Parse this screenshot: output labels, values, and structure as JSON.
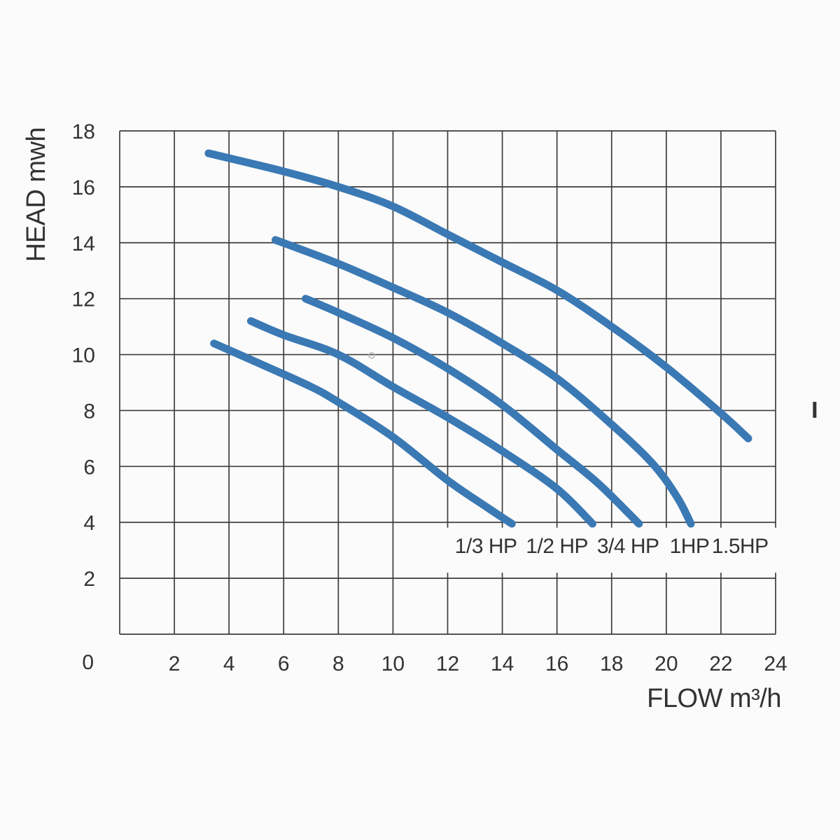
{
  "chart_data": {
    "type": "line",
    "title": "",
    "xlabel": "FLOW  m³/h",
    "ylabel": "HEAD mwh",
    "origin_label": "0",
    "xlim": [
      0,
      24
    ],
    "ylim": [
      0,
      18
    ],
    "grid": "on",
    "grid_step": 2,
    "x_ticks": [
      2,
      4,
      6,
      8,
      10,
      12,
      14,
      16,
      18,
      20,
      22,
      24
    ],
    "y_ticks": [
      2,
      4,
      6,
      8,
      10,
      12,
      14,
      16,
      18
    ],
    "legend_position": "inline-labels-below-curves",
    "series": [
      {
        "label": "1/3 HP",
        "label_x": 13.4,
        "points": [
          [
            3.45,
            10.4
          ],
          [
            5.3,
            9.6
          ],
          [
            7.0,
            8.85
          ],
          [
            8.0,
            8.3
          ],
          [
            10.0,
            7.05
          ],
          [
            12.0,
            5.5
          ],
          [
            13.5,
            4.5
          ],
          [
            14.35,
            3.95
          ]
        ]
      },
      {
        "label": "1/2 HP",
        "label_x": 16.0,
        "points": [
          [
            4.8,
            11.2
          ],
          [
            6.0,
            10.7
          ],
          [
            8.0,
            10.0
          ],
          [
            10.0,
            8.85
          ],
          [
            12.0,
            7.75
          ],
          [
            14.0,
            6.55
          ],
          [
            16.0,
            5.2
          ],
          [
            17.3,
            3.95
          ]
        ]
      },
      {
        "label": "3/4 HP",
        "label_x": 18.6,
        "points": [
          [
            6.8,
            12.0
          ],
          [
            8.0,
            11.5
          ],
          [
            10.0,
            10.6
          ],
          [
            12.0,
            9.5
          ],
          [
            14.0,
            8.2
          ],
          [
            16.0,
            6.6
          ],
          [
            17.5,
            5.4
          ],
          [
            19.0,
            3.95
          ]
        ]
      },
      {
        "label": "1HP",
        "label_x": 20.85,
        "points": [
          [
            5.7,
            14.1
          ],
          [
            8.0,
            13.25
          ],
          [
            10.0,
            12.4
          ],
          [
            12.0,
            11.5
          ],
          [
            14.0,
            10.4
          ],
          [
            16.0,
            9.15
          ],
          [
            18.0,
            7.5
          ],
          [
            19.5,
            6.1
          ],
          [
            20.4,
            4.9
          ],
          [
            20.9,
            3.95
          ]
        ]
      },
      {
        "label": "1.5HP",
        "label_x": 22.7,
        "points": [
          [
            3.25,
            17.2
          ],
          [
            6.0,
            16.55
          ],
          [
            8.0,
            16.0
          ],
          [
            10.0,
            15.3
          ],
          [
            12.0,
            14.3
          ],
          [
            14.0,
            13.3
          ],
          [
            16.0,
            12.3
          ],
          [
            18.0,
            11.0
          ],
          [
            20.0,
            9.55
          ],
          [
            22.0,
            7.9
          ],
          [
            23.0,
            7.0
          ]
        ]
      }
    ],
    "label_band": {
      "x": [
        11.9,
        24.2
      ],
      "y": [
        2.2,
        3.81
      ]
    },
    "watermark_dot": {
      "x": 9.22,
      "y": 9.97
    },
    "edge_mark": {
      "x": 25.43,
      "y": [
        7.74,
        8.31
      ]
    },
    "colors": {
      "curve": "#3a79b4",
      "grid": "#3d3d3d",
      "text": "#333333",
      "background": "#fbfbfb",
      "dot": "#b9b9b9"
    }
  }
}
